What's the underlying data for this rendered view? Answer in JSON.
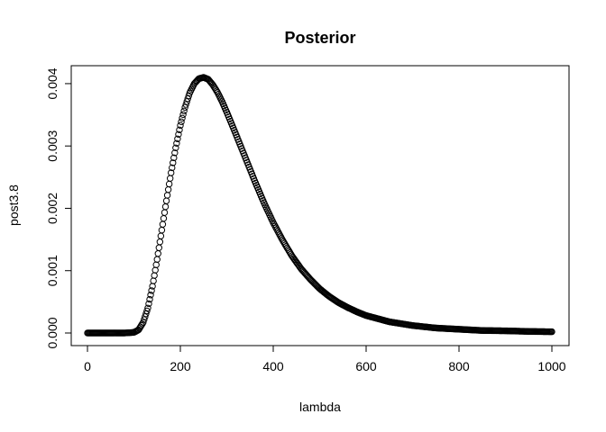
{
  "chart_data": {
    "type": "scatter",
    "title": "Posterior",
    "xlabel": "lambda",
    "ylabel": "post3.8",
    "xlim": [
      0,
      1000
    ],
    "ylim": [
      0,
      0.0041
    ],
    "grid": false,
    "legend": "none",
    "marker": "open-circle",
    "x_ticks": [
      {
        "value": 0,
        "label": "0"
      },
      {
        "value": 200,
        "label": "200"
      },
      {
        "value": 400,
        "label": "400"
      },
      {
        "value": 600,
        "label": "600"
      },
      {
        "value": 800,
        "label": "800"
      },
      {
        "value": 1000,
        "label": "1000"
      }
    ],
    "y_ticks": [
      {
        "value": 0.0,
        "label": "0.000"
      },
      {
        "value": 0.001,
        "label": "0.001"
      },
      {
        "value": 0.002,
        "label": "0.002"
      },
      {
        "value": 0.003,
        "label": "0.003"
      },
      {
        "value": 0.004,
        "label": "0.004"
      }
    ],
    "series": [
      {
        "color": "#000000",
        "x": [
          0,
          40,
          80,
          100,
          110,
          120,
          130,
          140,
          150,
          160,
          170,
          180,
          190,
          200,
          210,
          220,
          230,
          240,
          250,
          260,
          270,
          280,
          290,
          300,
          320,
          340,
          360,
          380,
          400,
          420,
          440,
          460,
          480,
          500,
          520,
          540,
          560,
          580,
          600,
          650,
          700,
          750,
          800,
          850,
          900,
          950,
          1000
        ],
        "y": [
          0,
          0,
          0,
          1e-05,
          5e-05,
          0.00017,
          0.0004,
          0.00075,
          0.00118,
          0.00165,
          0.00212,
          0.00257,
          0.00297,
          0.00333,
          0.00362,
          0.00385,
          0.004,
          0.00408,
          0.0041,
          0.00407,
          0.00398,
          0.00386,
          0.00371,
          0.00354,
          0.00318,
          0.00281,
          0.00244,
          0.00209,
          0.00177,
          0.00149,
          0.00124,
          0.00103,
          0.00086,
          0.00071,
          0.00059,
          0.00049,
          0.00041,
          0.00034,
          0.00028,
          0.00018,
          0.00012,
          8e-05,
          6e-05,
          4e-05,
          3.5e-05,
          2.5e-05,
          2e-05
        ]
      }
    ]
  }
}
